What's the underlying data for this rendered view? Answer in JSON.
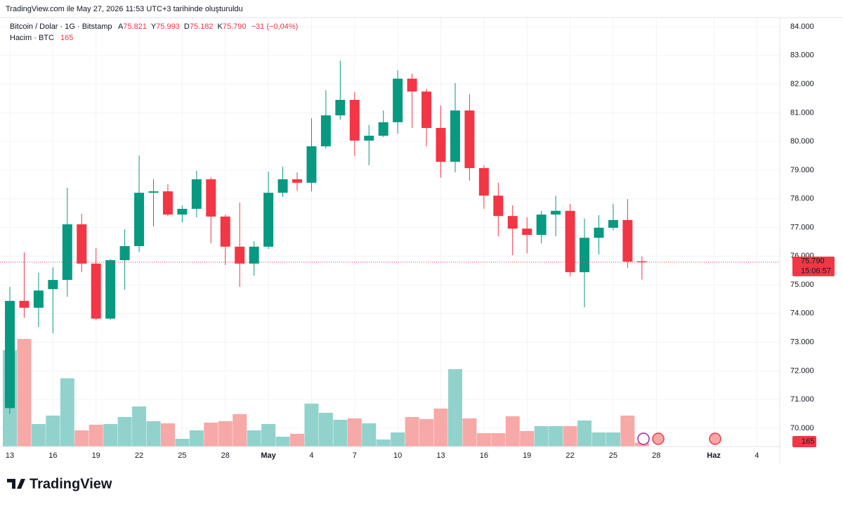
{
  "header": {
    "caption": "TradingView.com ile May 27, 2026 11:53 UTC+3 tarihinde oluşturuldu"
  },
  "chart_data": {
    "type": "candlestick",
    "title": "Bitcoin / Dolar · 1G · Bitstamp",
    "ohlc_legend": {
      "open": {
        "label": "A",
        "text": "75.821"
      },
      "high": {
        "label": "Y",
        "text": "75.993"
      },
      "low": {
        "label": "D",
        "text": "75.182"
      },
      "close": {
        "label": "K",
        "text": "75.790"
      },
      "change": "−31 (−0,04%)"
    },
    "categories": [
      "13",
      null,
      null,
      "16",
      null,
      null,
      "19",
      null,
      null,
      "22",
      null,
      null,
      "25",
      null,
      null,
      "28",
      null,
      null,
      "May",
      null,
      null,
      "4",
      null,
      null,
      "7",
      null,
      null,
      "10",
      null,
      null,
      "13",
      null,
      null,
      "16",
      null,
      null,
      "19",
      null,
      null,
      "22",
      null,
      null,
      "25",
      null,
      null,
      "28",
      null,
      null,
      null,
      "Haz",
      null,
      null,
      "4",
      null
    ],
    "series": [
      {
        "name": "Bitcoin / Dolar",
        "open": [
          70700,
          74440,
          74200,
          74850,
          75170,
          77110,
          75740,
          73820,
          75860,
          76350,
          78210,
          78260,
          77450,
          77650,
          78680,
          77380,
          76330,
          75740,
          76330,
          78210,
          78680,
          78560,
          79830,
          80910,
          81450,
          80030,
          80200,
          80670,
          82190,
          81740,
          80470,
          79290,
          81080,
          79070,
          78110,
          77400,
          76960,
          76740,
          77450,
          77580,
          75440,
          76640,
          76990,
          77260,
          75821,
          null,
          null,
          null,
          null,
          null,
          null,
          null,
          null,
          null
        ],
        "high": [
          74930,
          76130,
          75420,
          75610,
          78385,
          77480,
          76280,
          75900,
          76940,
          79510,
          78680,
          78510,
          77770,
          78970,
          78750,
          77450,
          77870,
          76520,
          78950,
          79120,
          78920,
          80810,
          81790,
          82820,
          81720,
          80570,
          81080,
          82480,
          82360,
          81840,
          81250,
          82040,
          81650,
          79170,
          78560,
          77770,
          77360,
          77580,
          78110,
          77820,
          77310,
          77430,
          77820,
          77990,
          75993,
          null,
          null,
          null,
          null,
          null,
          null,
          null,
          null,
          null
        ],
        "low": [
          70500,
          73850,
          73530,
          73310,
          74580,
          75440,
          73770,
          73770,
          74830,
          76150,
          77040,
          77400,
          77180,
          77360,
          76450,
          75690,
          74930,
          75320,
          76250,
          78070,
          78280,
          78260,
          79750,
          80760,
          79490,
          79170,
          80150,
          80270,
          80470,
          79830,
          78730,
          78920,
          78630,
          77650,
          76690,
          76030,
          76100,
          76450,
          76690,
          75300,
          74220,
          76060,
          76900,
          75590,
          75182,
          null,
          null,
          null,
          null,
          null,
          null,
          null,
          null,
          null
        ],
        "close": [
          74440,
          74200,
          74800,
          75170,
          77110,
          75740,
          73820,
          75860,
          76350,
          78210,
          78260,
          77450,
          77650,
          78680,
          77380,
          76330,
          75740,
          76330,
          78210,
          78680,
          78560,
          79830,
          80910,
          81450,
          80030,
          80200,
          80670,
          82190,
          81740,
          80470,
          79290,
          81080,
          79070,
          78110,
          77400,
          76960,
          76740,
          77450,
          77580,
          75440,
          76640,
          76990,
          77260,
          75810,
          75790,
          null,
          null,
          null,
          null,
          null,
          null,
          null,
          null,
          null
        ]
      }
    ],
    "volume": {
      "name": "Hacim · BTC",
      "last_label": "165",
      "values": [
        4110,
        4590,
        960,
        1320,
        2910,
        690,
        930,
        960,
        1260,
        1710,
        1080,
        990,
        330,
        690,
        1020,
        1080,
        1380,
        690,
        960,
        420,
        540,
        1830,
        1440,
        1140,
        1200,
        990,
        300,
        600,
        1260,
        1170,
        1620,
        3300,
        1200,
        570,
        570,
        1290,
        660,
        870,
        870,
        870,
        1110,
        600,
        600,
        1320,
        165,
        null,
        null,
        null,
        null,
        null,
        null,
        null,
        null,
        null
      ]
    },
    "up_color": "#089981",
    "down_color": "#f23645",
    "volume_up_color": "#92d2cc",
    "volume_down_color": "#f7a9a7",
    "ylim": [
      69360,
      84320
    ],
    "yticks": [
      {
        "value": 70000,
        "label": "70.000"
      },
      {
        "value": 71000,
        "label": "71.000"
      },
      {
        "value": 72000,
        "label": "72.000"
      },
      {
        "value": 73000,
        "label": "73.000"
      },
      {
        "value": 74000,
        "label": "74.000"
      },
      {
        "value": 75000,
        "label": "75.000"
      },
      {
        "value": 76000,
        "label": "76.000"
      },
      {
        "value": 77000,
        "label": "77.000"
      },
      {
        "value": 78000,
        "label": "78.000"
      },
      {
        "value": 79000,
        "label": "79.000"
      },
      {
        "value": 80000,
        "label": "80.000"
      },
      {
        "value": 81000,
        "label": "81.000"
      },
      {
        "value": 82000,
        "label": "82.000"
      },
      {
        "value": 83000,
        "label": "83.000"
      },
      {
        "value": 84000,
        "label": "84.000"
      }
    ],
    "grid": true,
    "last_price_label": "75.790",
    "countdown": "15:06:57"
  },
  "footer": {
    "brand": "TradingView"
  }
}
